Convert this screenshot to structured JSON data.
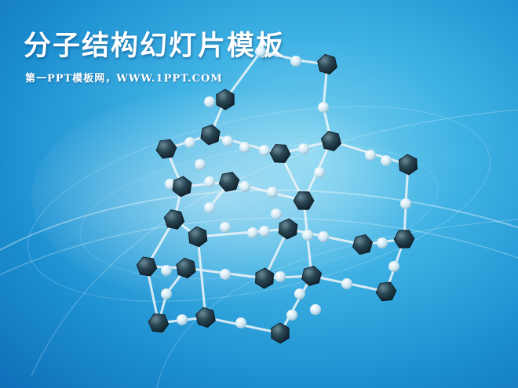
{
  "slide": {
    "title": "分子结构幻灯片模板",
    "subtitle": "第一PPT模板网，WWW.1PPT.COM"
  },
  "colors": {
    "background_center": "#7fd3f0",
    "background_edge": "#0f6fb8",
    "title_text": "#ffffff",
    "atom_dark": "#1e3a48",
    "atom_light": "#d8eef8",
    "bond": "#e8f2f8"
  },
  "icons": {
    "illustration": "molecular-lattice-model"
  }
}
